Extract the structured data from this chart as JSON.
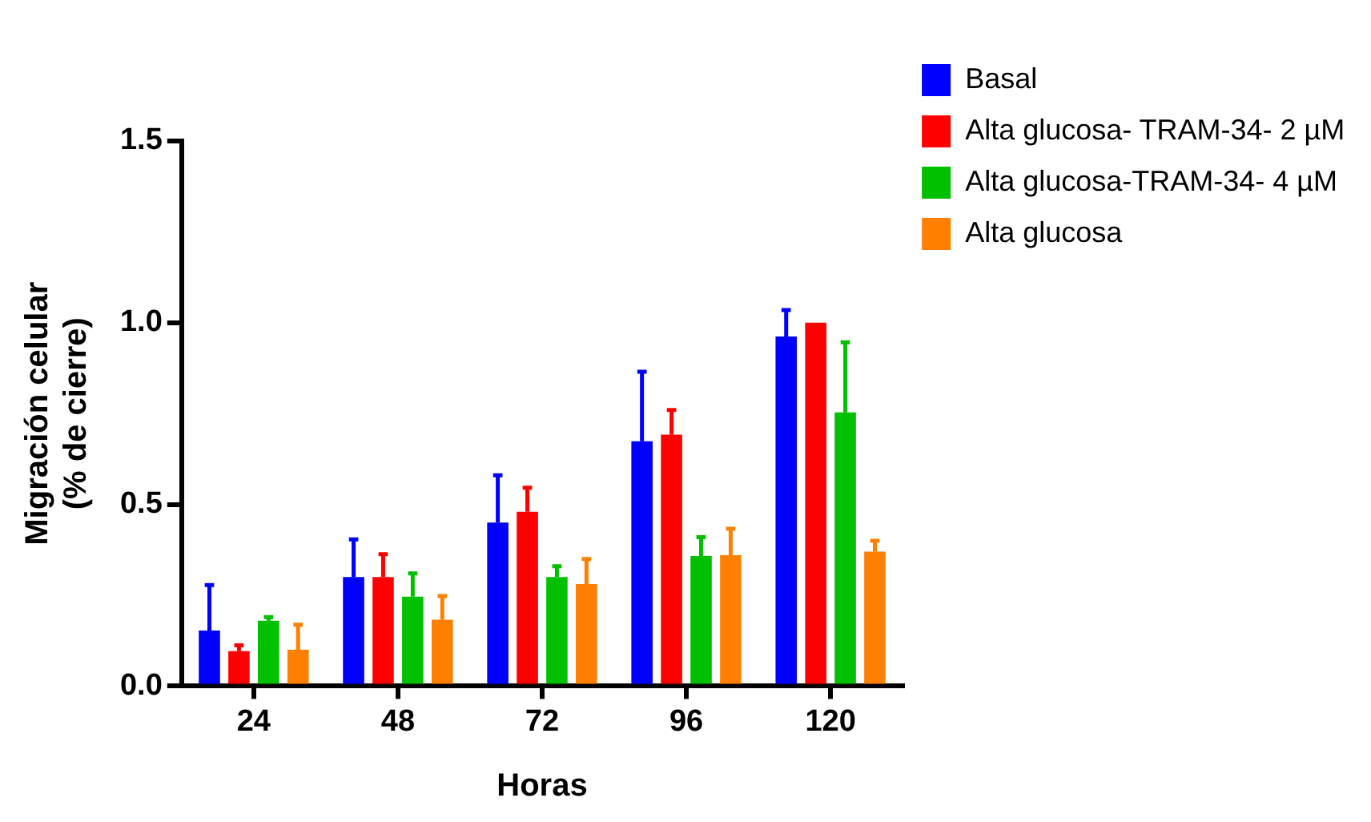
{
  "chart_data": {
    "type": "bar",
    "xlabel": "Horas",
    "ylabel": "Migración celular\n(% de cierre)",
    "categories": [
      "24",
      "48",
      "72",
      "96",
      "120"
    ],
    "series": [
      {
        "name": "Basal",
        "color": "#0000ff",
        "values": [
          0.153,
          0.3,
          0.45,
          0.674,
          0.962
        ],
        "errors": [
          [
            0.153,
            0.278
          ],
          [
            0.3,
            0.404
          ],
          [
            0.45,
            0.58
          ],
          [
            0.674,
            0.865
          ],
          [
            0.962,
            1.035
          ]
        ]
      },
      {
        "name": "Alta glucosa- TRAM-34- 2 µM",
        "color": "#ff0000",
        "values": [
          0.096,
          0.3,
          0.48,
          0.692,
          1.0
        ],
        "errors": [
          [
            0.096,
            0.112
          ],
          [
            0.3,
            0.363
          ],
          [
            0.48,
            0.546
          ],
          [
            0.692,
            0.76
          ],
          null
        ]
      },
      {
        "name": "Alta glucosa-TRAM-34- 4 µM",
        "color": "#00c000",
        "values": [
          0.18,
          0.246,
          0.3,
          0.358,
          0.753
        ],
        "errors": [
          [
            0.18,
            0.19
          ],
          [
            0.246,
            0.31
          ],
          [
            0.3,
            0.33
          ],
          [
            0.358,
            0.41
          ],
          [
            0.753,
            0.946
          ]
        ]
      },
      {
        "name": "Alta glucosa",
        "color": "#ff8000",
        "values": [
          0.1,
          0.183,
          0.281,
          0.36,
          0.37
        ],
        "errors": [
          [
            0.1,
            0.169
          ],
          [
            0.183,
            0.248
          ],
          [
            0.281,
            0.35
          ],
          [
            0.36,
            0.433
          ],
          [
            0.37,
            0.4
          ]
        ]
      }
    ],
    "ylim": [
      0,
      1.5
    ],
    "yticks": [
      {
        "value": 0,
        "label": "0.0"
      },
      {
        "value": 0.5,
        "label": "0.5"
      },
      {
        "value": 1,
        "label": "1.0"
      },
      {
        "value": 1.5,
        "label": "1.5"
      }
    ],
    "grid": false,
    "legend": "top right"
  }
}
